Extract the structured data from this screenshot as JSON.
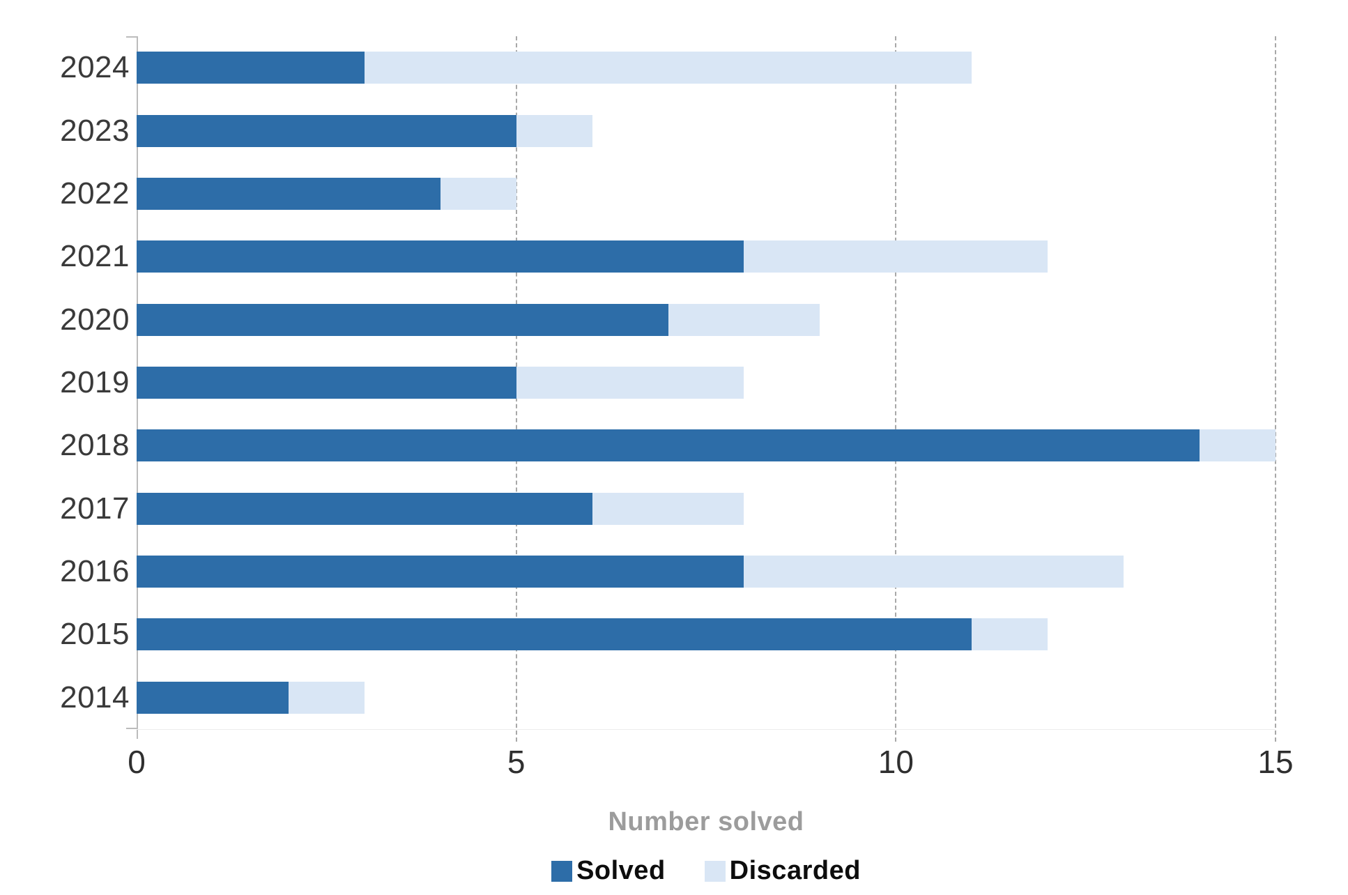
{
  "chart_data": {
    "type": "bar",
    "orientation": "horizontal",
    "stacked": true,
    "categories": [
      "2024",
      "2023",
      "2022",
      "2021",
      "2020",
      "2019",
      "2018",
      "2017",
      "2016",
      "2015",
      "2014"
    ],
    "series": [
      {
        "name": "Solved",
        "color": "#2d6da8",
        "values": [
          3,
          5,
          4,
          8,
          7,
          5,
          14,
          6,
          8,
          11,
          2
        ]
      },
      {
        "name": "Discarded",
        "color": "#d9e6f5",
        "values": [
          8,
          1,
          1,
          4,
          2,
          3,
          1,
          2,
          5,
          1,
          1
        ]
      }
    ],
    "totals": [
      11,
      6,
      5,
      12,
      9,
      8,
      15,
      8,
      13,
      12,
      3
    ],
    "xlabel": "Number solved",
    "xlim": [
      0,
      15
    ],
    "xticks": [
      0,
      5,
      10,
      15
    ],
    "grid": "dashed-vertical-at-5-10-15",
    "legend_position": "bottom",
    "colors": {
      "solved": "#2d6da8",
      "discarded": "#d9e6f5",
      "gridline": "#9a9a9a",
      "axis": "#bcbcbc",
      "year_label": "#3a3a3a",
      "tick_label": "#2f2f2f",
      "axis_title": "#9c9c9c",
      "legend_text": "#0d0d0d"
    }
  }
}
